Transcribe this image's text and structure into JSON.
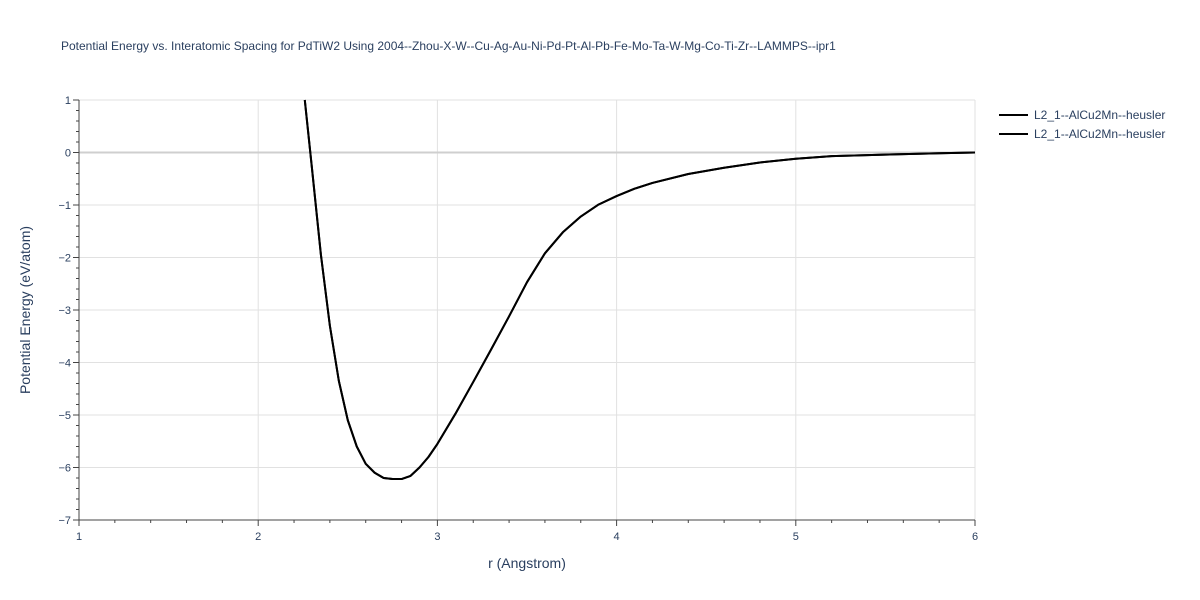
{
  "chart_data": {
    "type": "line",
    "title": "Potential Energy vs. Interatomic Spacing for PdTiW2 Using 2004--Zhou-X-W--Cu-Ag-Au-Ni-Pd-Pt-Al-Pb-Fe-Mo-Ta-W-Mg-Co-Ti-Zr--LAMMPS--ipr1",
    "xlabel": "r (Angstrom)",
    "ylabel": "Potential Energy (eV/atom)",
    "xlim": [
      1,
      6
    ],
    "ylim": [
      -7,
      1
    ],
    "x_ticks": [
      "1",
      "2",
      "3",
      "4",
      "5",
      "6"
    ],
    "y_ticks": [
      "1",
      "0",
      "−1",
      "−2",
      "−3",
      "−4",
      "−5",
      "−6",
      "−7"
    ],
    "grid": true,
    "legend_position": "top-right",
    "series": [
      {
        "name": "L2_1--AlCu2Mn--heusler",
        "color": "#000000",
        "x": [
          2.26,
          2.3,
          2.35,
          2.4,
          2.45,
          2.5,
          2.55,
          2.6,
          2.65,
          2.7,
          2.75,
          2.8,
          2.85,
          2.9,
          2.95,
          3.0,
          3.1,
          3.2,
          3.3,
          3.4,
          3.5,
          3.6,
          3.7,
          3.8,
          3.9,
          4.0,
          4.1,
          4.2,
          4.4,
          4.6,
          4.8,
          5.0,
          5.2,
          5.5,
          5.8,
          6.0
        ],
        "y": [
          1.0,
          -0.3,
          -1.95,
          -3.3,
          -4.35,
          -5.1,
          -5.6,
          -5.93,
          -6.1,
          -6.2,
          -6.22,
          -6.22,
          -6.16,
          -6.0,
          -5.8,
          -5.55,
          -4.98,
          -4.37,
          -3.75,
          -3.12,
          -2.47,
          -1.92,
          -1.52,
          -1.22,
          -0.99,
          -0.83,
          -0.69,
          -0.58,
          -0.41,
          -0.29,
          -0.19,
          -0.12,
          -0.07,
          -0.04,
          -0.015,
          0.0
        ]
      },
      {
        "name": "L2_1--AlCu2Mn--heusler",
        "color": "#000000",
        "x": [
          2.26,
          2.3,
          2.35,
          2.4,
          2.45,
          2.5,
          2.55,
          2.6,
          2.65,
          2.7,
          2.75,
          2.8,
          2.85,
          2.9,
          2.95,
          3.0,
          3.1,
          3.2,
          3.3,
          3.4,
          3.5,
          3.6,
          3.7,
          3.8,
          3.9,
          4.0,
          4.1,
          4.2,
          4.4,
          4.6,
          4.8,
          5.0,
          5.2,
          5.5,
          5.8,
          6.0
        ],
        "y": [
          1.0,
          -0.3,
          -1.95,
          -3.3,
          -4.35,
          -5.1,
          -5.6,
          -5.93,
          -6.1,
          -6.2,
          -6.22,
          -6.22,
          -6.16,
          -6.0,
          -5.8,
          -5.55,
          -4.98,
          -4.37,
          -3.75,
          -3.12,
          -2.47,
          -1.92,
          -1.52,
          -1.22,
          -0.99,
          -0.83,
          -0.69,
          -0.58,
          -0.41,
          -0.29,
          -0.19,
          -0.12,
          -0.07,
          -0.04,
          -0.015,
          0.0
        ]
      }
    ]
  }
}
